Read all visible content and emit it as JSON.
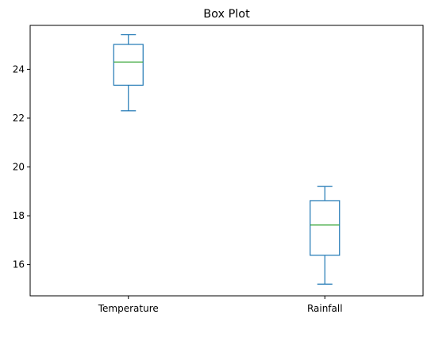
{
  "chart_data": {
    "type": "box",
    "title": "Box Plot",
    "xlabel": "",
    "ylabel": "",
    "categories": [
      "Temperature",
      "Rainfall"
    ],
    "boxes": [
      {
        "label": "Temperature",
        "whislo": 22.3,
        "q1": 23.35,
        "med": 24.3,
        "q3": 25.02,
        "whishi": 25.42
      },
      {
        "label": "Rainfall",
        "whislo": 15.2,
        "q1": 16.38,
        "med": 17.62,
        "q3": 18.62,
        "whishi": 19.2
      }
    ],
    "ylim": [
      14.72,
      25.8
    ],
    "yticks": [
      16,
      18,
      20,
      22,
      24
    ],
    "grid": false,
    "colors": {
      "box": "#1f77b4",
      "median": "#2ca02c",
      "axis": "#000000"
    }
  }
}
